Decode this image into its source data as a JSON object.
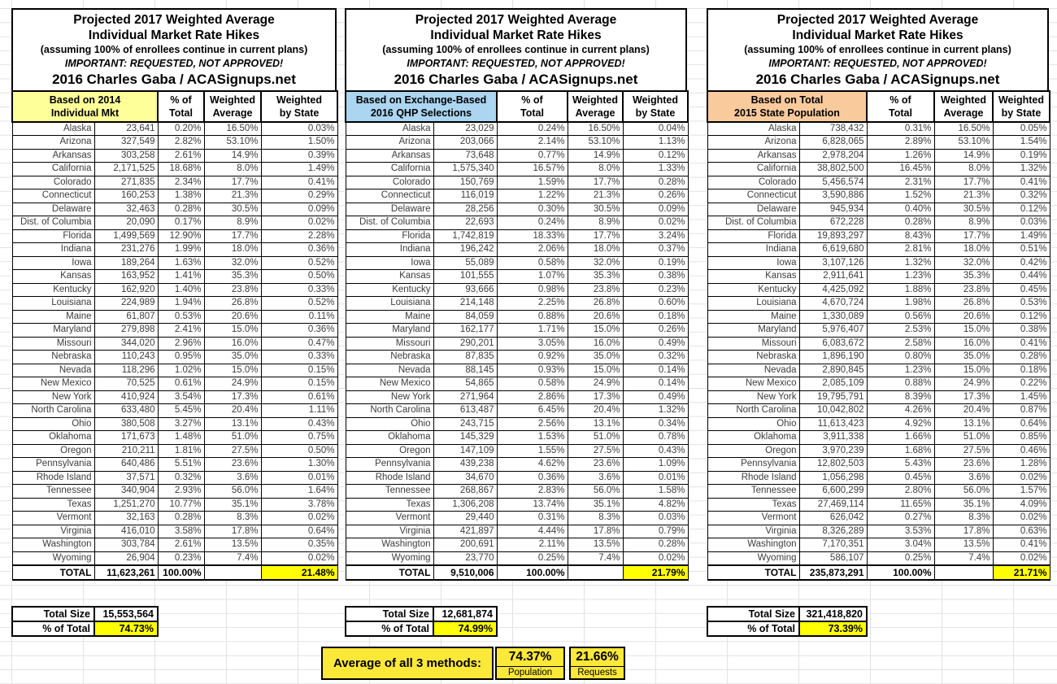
{
  "sheet": {
    "title_lines": [
      "Projected 2017 Weighted Average",
      "Individual Market Rate Hikes",
      "(assuming 100% of enrollees continue in current plans)",
      "IMPORTANT: REQUESTED, NOT APPROVED!",
      "2016 Charles Gaba / ACASignups.net"
    ],
    "columns": {
      "pct": [
        "% of",
        "Total"
      ],
      "wavg": [
        "Weighted",
        "Average"
      ],
      "wstate": [
        "Weighted",
        "by State"
      ]
    },
    "colors": {
      "header_yellow": "#FFFF99",
      "header_blue": "#ABD5F0",
      "header_orange": "#F9CB9C",
      "highlight_yellow": "#FFFF00",
      "footer_yellow": "#FBE839"
    },
    "tables": [
      {
        "header_lines": [
          "Based on 2014",
          "Individual Mkt"
        ],
        "header_bg": "#FFFF99",
        "rows": [
          [
            "Alaska",
            "23,641",
            "0.20%",
            "16.50%",
            "0.03%"
          ],
          [
            "Arizona",
            "327,549",
            "2.82%",
            "53.10%",
            "1.50%"
          ],
          [
            "Arkansas",
            "303,258",
            "2.61%",
            "14.9%",
            "0.39%"
          ],
          [
            "California",
            "2,171,525",
            "18.68%",
            "8.0%",
            "1.49%"
          ],
          [
            "Colorado",
            "271,835",
            "2.34%",
            "17.7%",
            "0.41%"
          ],
          [
            "Connecticut",
            "160,253",
            "1.38%",
            "21.3%",
            "0.29%"
          ],
          [
            "Delaware",
            "32,463",
            "0.28%",
            "30.5%",
            "0.09%"
          ],
          [
            "Dist. of Columbia",
            "20,090",
            "0.17%",
            "8.9%",
            "0.02%"
          ],
          [
            "Florida",
            "1,499,569",
            "12.90%",
            "17.7%",
            "2.28%"
          ],
          [
            "Indiana",
            "231,276",
            "1.99%",
            "18.0%",
            "0.36%"
          ],
          [
            "Iowa",
            "189,264",
            "1.63%",
            "32.0%",
            "0.52%"
          ],
          [
            "Kansas",
            "163,952",
            "1.41%",
            "35.3%",
            "0.50%"
          ],
          [
            "Kentucky",
            "162,920",
            "1.40%",
            "23.8%",
            "0.33%"
          ],
          [
            "Louisiana",
            "224,989",
            "1.94%",
            "26.8%",
            "0.52%"
          ],
          [
            "Maine",
            "61,807",
            "0.53%",
            "20.6%",
            "0.11%"
          ],
          [
            "Maryland",
            "279,898",
            "2.41%",
            "15.0%",
            "0.36%"
          ],
          [
            "Missouri",
            "344,020",
            "2.96%",
            "16.0%",
            "0.47%"
          ],
          [
            "Nebraska",
            "110,243",
            "0.95%",
            "35.0%",
            "0.33%"
          ],
          [
            "Nevada",
            "118,296",
            "1.02%",
            "15.0%",
            "0.15%"
          ],
          [
            "New Mexico",
            "70,525",
            "0.61%",
            "24.9%",
            "0.15%"
          ],
          [
            "New York",
            "410,924",
            "3.54%",
            "17.3%",
            "0.61%"
          ],
          [
            "North Carolina",
            "633,480",
            "5.45%",
            "20.4%",
            "1.11%"
          ],
          [
            "Ohio",
            "380,508",
            "3.27%",
            "13.1%",
            "0.43%"
          ],
          [
            "Oklahoma",
            "171,673",
            "1.48%",
            "51.0%",
            "0.75%"
          ],
          [
            "Oregon",
            "210,211",
            "1.81%",
            "27.5%",
            "0.50%"
          ],
          [
            "Pennsylvania",
            "640,486",
            "5.51%",
            "23.6%",
            "1.30%"
          ],
          [
            "Rhode Island",
            "37,571",
            "0.32%",
            "3.6%",
            "0.01%"
          ],
          [
            "Tennessee",
            "340,904",
            "2.93%",
            "56.0%",
            "1.64%"
          ],
          [
            "Texas",
            "1,251,270",
            "10.77%",
            "35.1%",
            "3.78%"
          ],
          [
            "Vermont",
            "32,163",
            "0.28%",
            "8.3%",
            "0.02%"
          ],
          [
            "Virginia",
            "416,010",
            "3.58%",
            "17.8%",
            "0.64%"
          ],
          [
            "Washington",
            "303,784",
            "2.61%",
            "13.5%",
            "0.35%"
          ],
          [
            "Wyoming",
            "26,904",
            "0.23%",
            "7.4%",
            "0.02%"
          ]
        ],
        "total_row": [
          "TOTAL",
          "11,623,261",
          "100.00%",
          "",
          "21.48%"
        ],
        "summary": {
          "total_size_label": "Total Size",
          "total_size_value": "15,553,564",
          "pct_label": "% of Total",
          "pct_value": "74.73%"
        }
      },
      {
        "header_lines": [
          "Based on Exchange-Based",
          "2016 QHP Selections"
        ],
        "header_bg": "#ABD5F0",
        "rows": [
          [
            "Alaska",
            "23,029",
            "0.24%",
            "16.50%",
            "0.04%"
          ],
          [
            "Arizona",
            "203,066",
            "2.14%",
            "53.10%",
            "1.13%"
          ],
          [
            "Arkansas",
            "73,648",
            "0.77%",
            "14.9%",
            "0.12%"
          ],
          [
            "California",
            "1,575,340",
            "16.57%",
            "8.0%",
            "1.33%"
          ],
          [
            "Colorado",
            "150,769",
            "1.59%",
            "17.7%",
            "0.28%"
          ],
          [
            "Connecticut",
            "116,019",
            "1.22%",
            "21.3%",
            "0.26%"
          ],
          [
            "Delaware",
            "28,256",
            "0.30%",
            "30.5%",
            "0.09%"
          ],
          [
            "Dist. of Columbia",
            "22,693",
            "0.24%",
            "8.9%",
            "0.02%"
          ],
          [
            "Florida",
            "1,742,819",
            "18.33%",
            "17.7%",
            "3.24%"
          ],
          [
            "Indiana",
            "196,242",
            "2.06%",
            "18.0%",
            "0.37%"
          ],
          [
            "Iowa",
            "55,089",
            "0.58%",
            "32.0%",
            "0.19%"
          ],
          [
            "Kansas",
            "101,555",
            "1.07%",
            "35.3%",
            "0.38%"
          ],
          [
            "Kentucky",
            "93,666",
            "0.98%",
            "23.8%",
            "0.23%"
          ],
          [
            "Louisiana",
            "214,148",
            "2.25%",
            "26.8%",
            "0.60%"
          ],
          [
            "Maine",
            "84,059",
            "0.88%",
            "20.6%",
            "0.18%"
          ],
          [
            "Maryland",
            "162,177",
            "1.71%",
            "15.0%",
            "0.26%"
          ],
          [
            "Missouri",
            "290,201",
            "3.05%",
            "16.0%",
            "0.49%"
          ],
          [
            "Nebraska",
            "87,835",
            "0.92%",
            "35.0%",
            "0.32%"
          ],
          [
            "Nevada",
            "88,145",
            "0.93%",
            "15.0%",
            "0.14%"
          ],
          [
            "New Mexico",
            "54,865",
            "0.58%",
            "24.9%",
            "0.14%"
          ],
          [
            "New York",
            "271,964",
            "2.86%",
            "17.3%",
            "0.49%"
          ],
          [
            "North Carolina",
            "613,487",
            "6.45%",
            "20.4%",
            "1.32%"
          ],
          [
            "Ohio",
            "243,715",
            "2.56%",
            "13.1%",
            "0.34%"
          ],
          [
            "Oklahoma",
            "145,329",
            "1.53%",
            "51.0%",
            "0.78%"
          ],
          [
            "Oregon",
            "147,109",
            "1.55%",
            "27.5%",
            "0.43%"
          ],
          [
            "Pennsylvania",
            "439,238",
            "4.62%",
            "23.6%",
            "1.09%"
          ],
          [
            "Rhode Island",
            "34,670",
            "0.36%",
            "3.6%",
            "0.01%"
          ],
          [
            "Tennessee",
            "268,867",
            "2.83%",
            "56.0%",
            "1.58%"
          ],
          [
            "Texas",
            "1,306,208",
            "13.74%",
            "35.1%",
            "4.82%"
          ],
          [
            "Vermont",
            "29,440",
            "0.31%",
            "8.3%",
            "0.03%"
          ],
          [
            "Virginia",
            "421,897",
            "4.44%",
            "17.8%",
            "0.79%"
          ],
          [
            "Washington",
            "200,691",
            "2.11%",
            "13.5%",
            "0.28%"
          ],
          [
            "Wyoming",
            "23,770",
            "0.25%",
            "7.4%",
            "0.02%"
          ]
        ],
        "total_row": [
          "TOTAL",
          "9,510,006",
          "100.00%",
          "",
          "21.79%"
        ],
        "summary": {
          "total_size_label": "Total Size",
          "total_size_value": "12,681,874",
          "pct_label": "% of Total",
          "pct_value": "74.99%"
        }
      },
      {
        "header_lines": [
          "Based on Total",
          "2015 State Population"
        ],
        "header_bg": "#F9CB9C",
        "rows": [
          [
            "Alaska",
            "738,432",
            "0.31%",
            "16.50%",
            "0.05%"
          ],
          [
            "Arizona",
            "6,828,065",
            "2.89%",
            "53.10%",
            "1.54%"
          ],
          [
            "Arkansas",
            "2,978,204",
            "1.26%",
            "14.9%",
            "0.19%"
          ],
          [
            "California",
            "38,802,500",
            "16.45%",
            "8.0%",
            "1.32%"
          ],
          [
            "Colorado",
            "5,456,574",
            "2.31%",
            "17.7%",
            "0.41%"
          ],
          [
            "Connecticut",
            "3,590,886",
            "1.52%",
            "21.3%",
            "0.32%"
          ],
          [
            "Delaware",
            "945,934",
            "0.40%",
            "30.5%",
            "0.12%"
          ],
          [
            "Dist. of Columbia",
            "672,228",
            "0.28%",
            "8.9%",
            "0.03%"
          ],
          [
            "Florida",
            "19,893,297",
            "8.43%",
            "17.7%",
            "1.49%"
          ],
          [
            "Indiana",
            "6,619,680",
            "2.81%",
            "18.0%",
            "0.51%"
          ],
          [
            "Iowa",
            "3,107,126",
            "1.32%",
            "32.0%",
            "0.42%"
          ],
          [
            "Kansas",
            "2,911,641",
            "1.23%",
            "35.3%",
            "0.44%"
          ],
          [
            "Kentucky",
            "4,425,092",
            "1.88%",
            "23.8%",
            "0.45%"
          ],
          [
            "Louisiana",
            "4,670,724",
            "1.98%",
            "26.8%",
            "0.53%"
          ],
          [
            "Maine",
            "1,330,089",
            "0.56%",
            "20.6%",
            "0.12%"
          ],
          [
            "Maryland",
            "5,976,407",
            "2.53%",
            "15.0%",
            "0.38%"
          ],
          [
            "Missouri",
            "6,083,672",
            "2.58%",
            "16.0%",
            "0.41%"
          ],
          [
            "Nebraska",
            "1,896,190",
            "0.80%",
            "35.0%",
            "0.28%"
          ],
          [
            "Nevada",
            "2,890,845",
            "1.23%",
            "15.0%",
            "0.18%"
          ],
          [
            "New Mexico",
            "2,085,109",
            "0.88%",
            "24.9%",
            "0.22%"
          ],
          [
            "New York",
            "19,795,791",
            "8.39%",
            "17.3%",
            "1.45%"
          ],
          [
            "North Carolina",
            "10,042,802",
            "4.26%",
            "20.4%",
            "0.87%"
          ],
          [
            "Ohio",
            "11,613,423",
            "4.92%",
            "13.1%",
            "0.64%"
          ],
          [
            "Oklahoma",
            "3,911,338",
            "1.66%",
            "51.0%",
            "0.85%"
          ],
          [
            "Oregon",
            "3,970,239",
            "1.68%",
            "27.5%",
            "0.46%"
          ],
          [
            "Pennsylvania",
            "12,802,503",
            "5.43%",
            "23.6%",
            "1.28%"
          ],
          [
            "Rhode Island",
            "1,056,298",
            "0.45%",
            "3.6%",
            "0.02%"
          ],
          [
            "Tennessee",
            "6,600,299",
            "2.80%",
            "56.0%",
            "1.57%"
          ],
          [
            "Texas",
            "27,469,114",
            "11.65%",
            "35.1%",
            "4.09%"
          ],
          [
            "Vermont",
            "626,042",
            "0.27%",
            "8.3%",
            "0.02%"
          ],
          [
            "Virginia",
            "8,326,289",
            "3.53%",
            "17.8%",
            "0.63%"
          ],
          [
            "Washington",
            "7,170,351",
            "3.04%",
            "13.5%",
            "0.41%"
          ],
          [
            "Wyoming",
            "586,107",
            "0.25%",
            "7.4%",
            "0.02%"
          ]
        ],
        "total_row": [
          "TOTAL",
          "235,873,291",
          "100.00%",
          "",
          "21.71%"
        ],
        "summary": {
          "total_size_label": "Total Size",
          "total_size_value": "321,418,820",
          "pct_label": "% of Total",
          "pct_value": "73.39%"
        }
      }
    ],
    "footer": {
      "label": "Average of all 3 methods:",
      "population_value": "74.37%",
      "population_caption": "Population",
      "requests_value": "21.66%",
      "requests_caption": "Requests"
    }
  }
}
